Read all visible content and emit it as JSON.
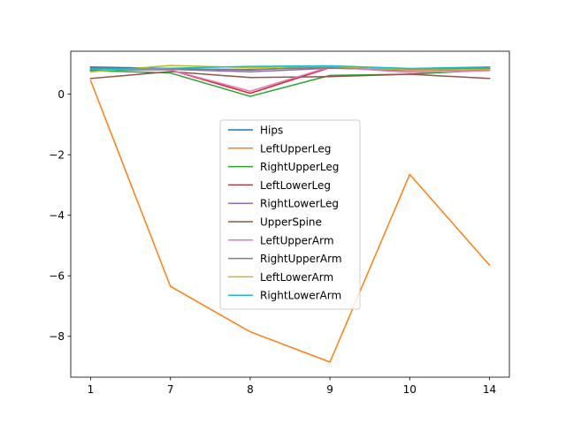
{
  "chart_data": {
    "type": "line",
    "categories": [
      "1",
      "7",
      "8",
      "9",
      "10",
      "14"
    ],
    "ylim": [
      -9.35,
      1.42
    ],
    "yticks": [
      0,
      -2,
      -4,
      -6,
      -8
    ],
    "ytick_labels": [
      "0",
      "−2",
      "−4",
      "−6",
      "−8"
    ],
    "grid": false,
    "legend_placement": "center",
    "series": [
      {
        "name": "Hips",
        "color": "#1f77b4",
        "values": [
          0.9,
          0.85,
          0.8,
          0.92,
          0.84,
          0.86
        ]
      },
      {
        "name": "LeftUpperLeg",
        "color": "#ff7f0e",
        "values": [
          0.45,
          -6.35,
          -7.85,
          -8.85,
          -2.65,
          -5.65
        ]
      },
      {
        "name": "RightUpperLeg",
        "color": "#2ca02c",
        "values": [
          0.78,
          0.7,
          -0.07,
          0.62,
          0.66,
          0.8
        ]
      },
      {
        "name": "LeftLowerLeg",
        "color": "#d62728",
        "values": [
          0.8,
          0.8,
          0.03,
          0.88,
          0.78,
          0.82
        ]
      },
      {
        "name": "RightLowerLeg",
        "color": "#9467bd",
        "values": [
          0.84,
          0.82,
          0.74,
          0.86,
          0.8,
          0.84
        ]
      },
      {
        "name": "UpperSpine",
        "color": "#8c564b",
        "values": [
          0.52,
          0.75,
          0.55,
          0.58,
          0.66,
          0.52
        ]
      },
      {
        "name": "LeftUpperArm",
        "color": "#e377c2",
        "values": [
          0.82,
          0.8,
          0.1,
          0.9,
          0.72,
          0.78
        ]
      },
      {
        "name": "RightUpperArm",
        "color": "#7f7f7f",
        "values": [
          0.86,
          0.84,
          0.82,
          0.88,
          0.84,
          0.86
        ]
      },
      {
        "name": "LeftLowerArm",
        "color": "#bcbd22",
        "values": [
          0.74,
          0.95,
          0.88,
          0.92,
          0.8,
          0.82
        ]
      },
      {
        "name": "RightLowerArm",
        "color": "#17becf",
        "values": [
          0.82,
          0.86,
          0.92,
          0.94,
          0.85,
          0.9
        ]
      }
    ]
  }
}
